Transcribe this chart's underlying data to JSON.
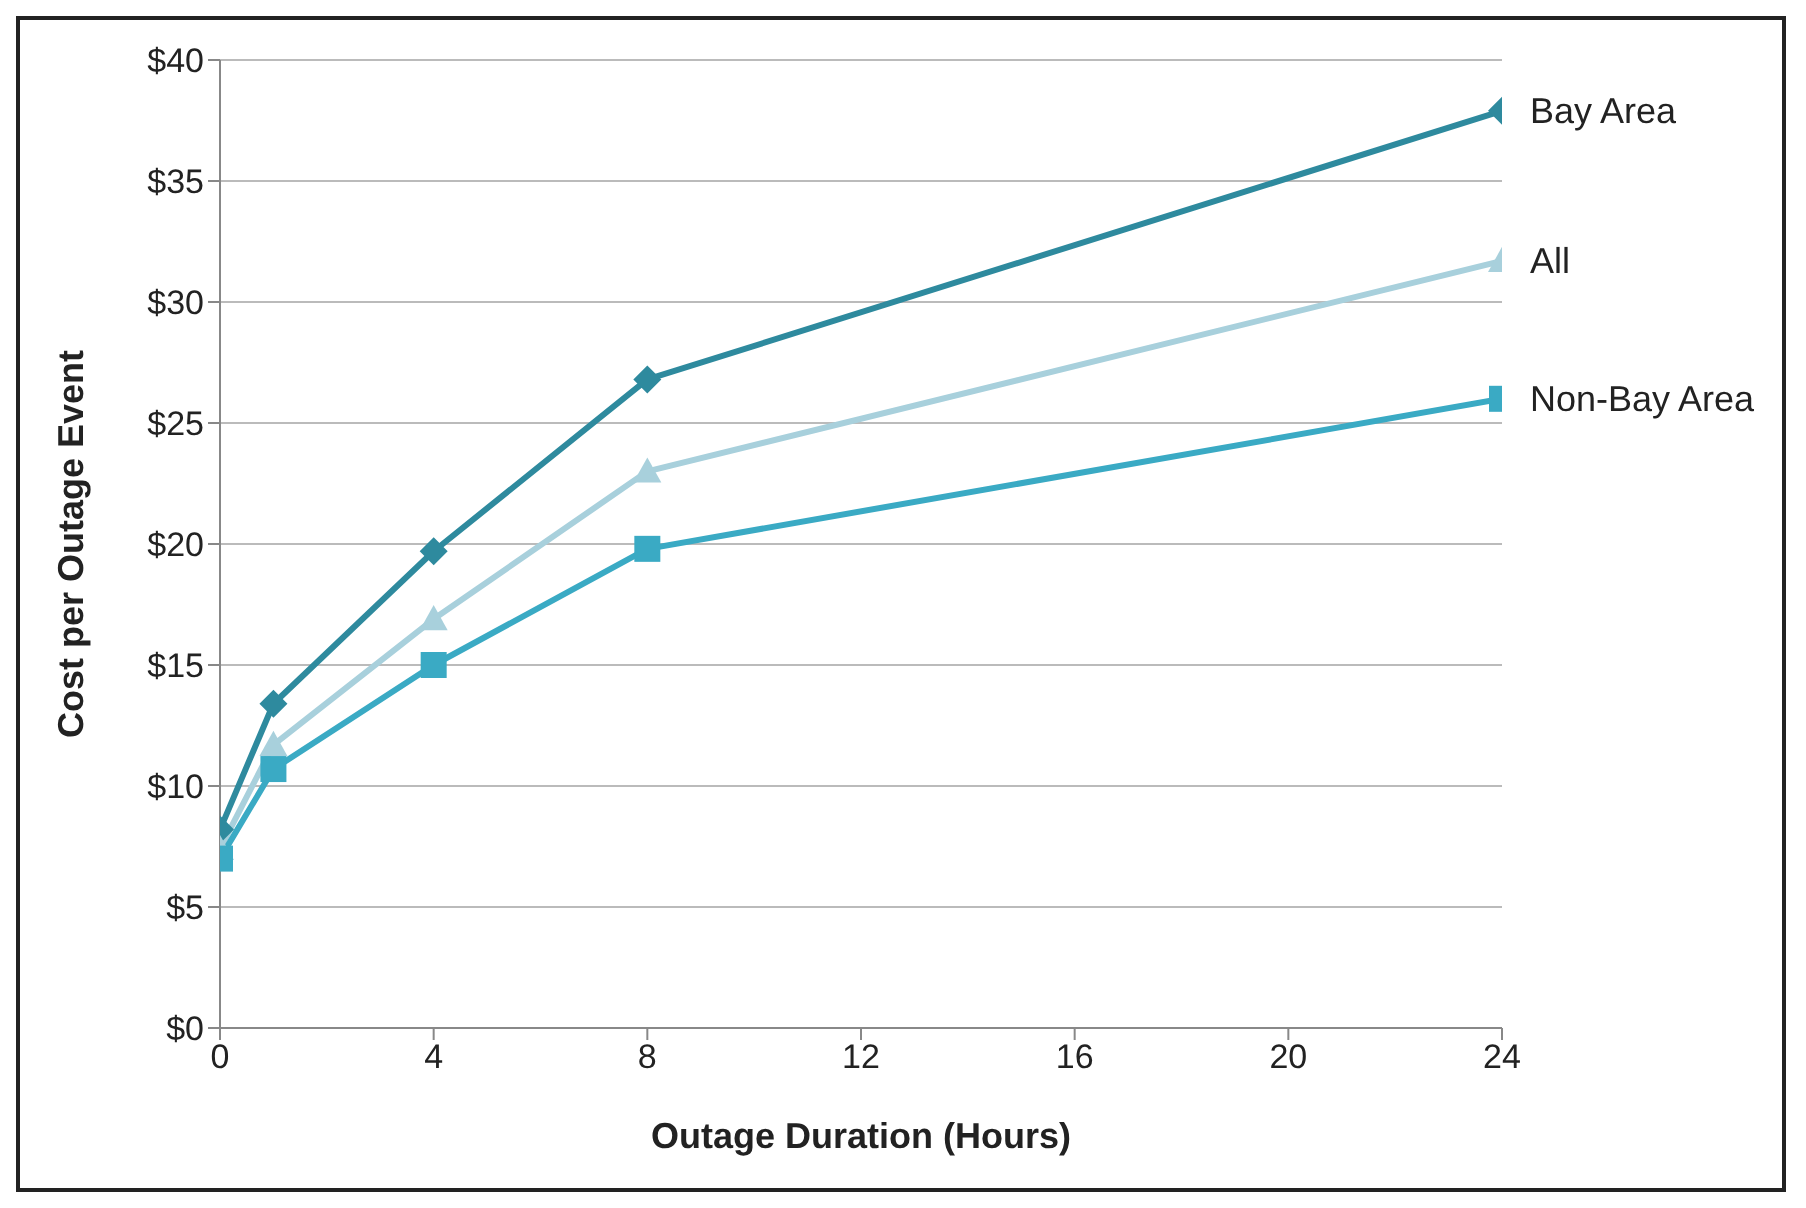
{
  "chart_data": {
    "type": "line",
    "xlabel": "Outage Duration (Hours)",
    "ylabel": "Cost per Outage Event",
    "x": [
      0,
      1,
      4,
      8,
      24
    ],
    "series": [
      {
        "name": "Bay Area",
        "color": "#2e8a9e",
        "marker": "diamond",
        "values": [
          8.2,
          13.4,
          19.7,
          26.8,
          37.9
        ]
      },
      {
        "name": "All",
        "color": "#a8d0dc",
        "marker": "triangle",
        "values": [
          7.4,
          11.7,
          16.9,
          23.0,
          31.7
        ]
      },
      {
        "name": "Non-Bay Area",
        "color": "#3aaac4",
        "marker": "square",
        "values": [
          7.0,
          10.7,
          15.0,
          19.8,
          26.0
        ]
      }
    ],
    "xlim": [
      0,
      24
    ],
    "xticks": [
      0,
      4,
      8,
      12,
      16,
      20,
      24
    ],
    "ylim": [
      0,
      40
    ],
    "yticks": [
      {
        "value": 0,
        "label": "$0"
      },
      {
        "value": 5,
        "label": "$5"
      },
      {
        "value": 10,
        "label": "$10"
      },
      {
        "value": 15,
        "label": "$15"
      },
      {
        "value": 20,
        "label": "$20"
      },
      {
        "value": 25,
        "label": "$25"
      },
      {
        "value": 30,
        "label": "$30"
      },
      {
        "value": 35,
        "label": "$35"
      },
      {
        "value": 40,
        "label": "$40"
      }
    ],
    "grid": "y",
    "legend": false
  }
}
